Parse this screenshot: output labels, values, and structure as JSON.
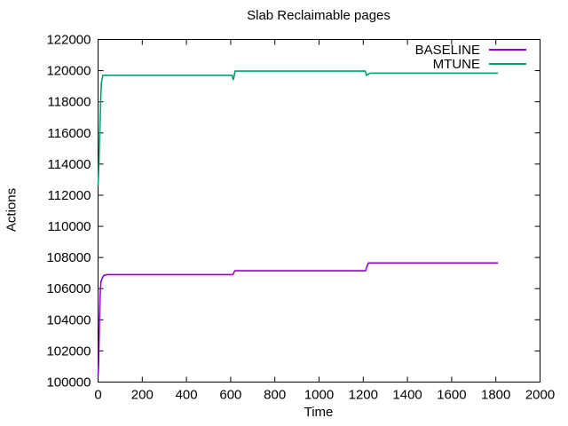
{
  "title": "Slab Reclaimable pages",
  "chart_data": {
    "type": "line",
    "title": "Slab Reclaimable pages",
    "xlabel": "Time",
    "ylabel": "Actions",
    "xlim": [
      0,
      2000
    ],
    "ylim": [
      100000,
      122000
    ],
    "xticks": [
      0,
      200,
      400,
      600,
      800,
      1000,
      1200,
      1400,
      1600,
      1800,
      2000
    ],
    "yticks": [
      100000,
      102000,
      104000,
      106000,
      108000,
      110000,
      112000,
      114000,
      116000,
      118000,
      120000,
      122000
    ],
    "grid": false,
    "legend_position": "top-right-inside",
    "frame_color": "#000000",
    "background_color": "#ffffff",
    "series": [
      {
        "name": "BASELINE",
        "color": "#9400d3",
        "points": [
          [
            0,
            100400
          ],
          [
            2,
            101000
          ],
          [
            3,
            101600
          ],
          [
            5,
            103000
          ],
          [
            6,
            103800
          ],
          [
            9,
            105400
          ],
          [
            10,
            105800
          ],
          [
            13,
            106450
          ],
          [
            20,
            106700
          ],
          [
            26,
            106850
          ],
          [
            42,
            106900
          ],
          [
            610,
            106900
          ],
          [
            614,
            107020
          ],
          [
            619,
            107150
          ],
          [
            1211,
            107150
          ],
          [
            1216,
            107400
          ],
          [
            1223,
            107650
          ],
          [
            1810,
            107650
          ]
        ]
      },
      {
        "name": "MTUNE",
        "color": "#009e73",
        "points": [
          [
            0,
            112600
          ],
          [
            3,
            113800
          ],
          [
            4,
            114050
          ],
          [
            7,
            115800
          ],
          [
            8,
            116150
          ],
          [
            12,
            118200
          ],
          [
            15,
            119200
          ],
          [
            22,
            119700
          ],
          [
            607,
            119700
          ],
          [
            611,
            119420
          ],
          [
            614,
            119500
          ],
          [
            620,
            119975
          ],
          [
            1209,
            119975
          ],
          [
            1215,
            119690
          ],
          [
            1222,
            119770
          ],
          [
            1231,
            119840
          ],
          [
            1810,
            119840
          ]
        ]
      }
    ]
  }
}
